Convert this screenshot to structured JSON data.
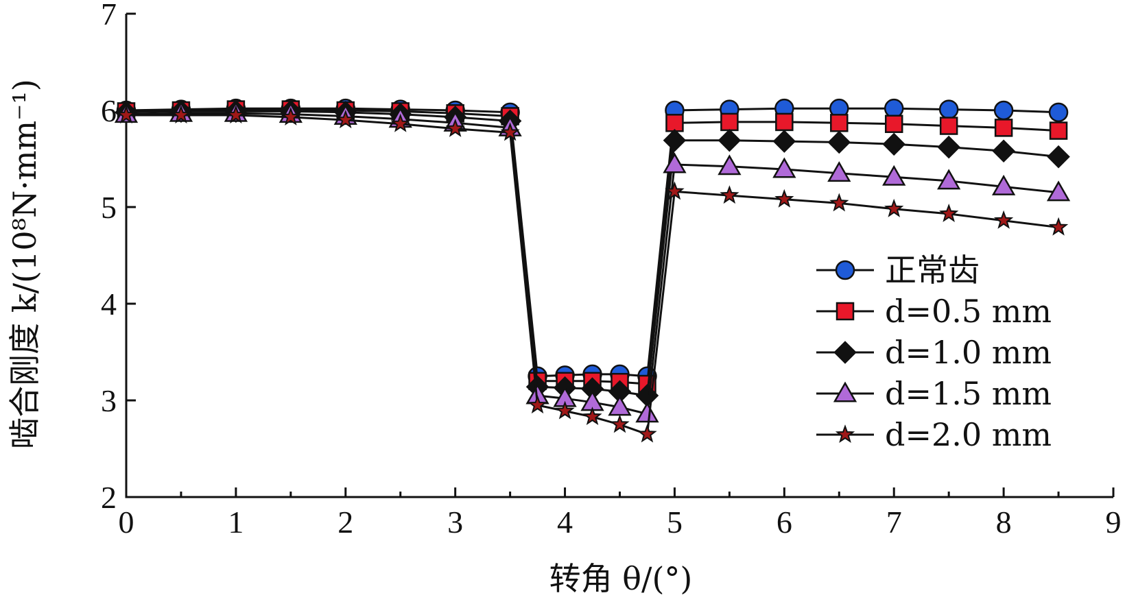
{
  "chart_data": {
    "type": "line",
    "title": "",
    "xlabel": "转角 θ/(°)",
    "ylabel": "啮合刚度 k/(10⁸N·mm⁻¹)",
    "xlim": [
      0,
      9
    ],
    "ylim": [
      2,
      7
    ],
    "xticks": [
      "0",
      "1",
      "2",
      "3",
      "4",
      "5",
      "6",
      "7",
      "8",
      "9"
    ],
    "yticks": [
      "2",
      "3",
      "4",
      "5",
      "6",
      "7"
    ],
    "legend_position": "right",
    "x": [
      0,
      0.5,
      1,
      1.5,
      2,
      2.5,
      3,
      3.5,
      3.75,
      4,
      4.25,
      4.5,
      4.75,
      5,
      5.5,
      6,
      6.5,
      7,
      7.5,
      8,
      8.5
    ],
    "series": [
      {
        "name": "正常齿",
        "marker": "circle",
        "color": "#1f5bd8",
        "values": [
          6.0,
          6.01,
          6.02,
          6.02,
          6.02,
          6.01,
          6.0,
          5.98,
          3.25,
          3.26,
          3.27,
          3.27,
          3.25,
          6.0,
          6.01,
          6.02,
          6.02,
          6.02,
          6.01,
          6.0,
          5.98
        ]
      },
      {
        "name": "d=0.5 mm",
        "marker": "square",
        "color": "#e8182a",
        "values": [
          5.99,
          6.0,
          6.01,
          6.01,
          6.0,
          5.99,
          5.97,
          5.94,
          3.2,
          3.2,
          3.2,
          3.19,
          3.17,
          5.87,
          5.88,
          5.88,
          5.87,
          5.86,
          5.84,
          5.82,
          5.79
        ]
      },
      {
        "name": "d=1.0 mm",
        "marker": "diamond",
        "color": "#111111",
        "values": [
          5.98,
          5.99,
          5.99,
          5.99,
          5.98,
          5.96,
          5.93,
          5.89,
          3.14,
          3.13,
          3.12,
          3.09,
          3.05,
          5.69,
          5.69,
          5.68,
          5.67,
          5.65,
          5.62,
          5.58,
          5.52
        ]
      },
      {
        "name": "d=1.5 mm",
        "marker": "triangle",
        "color": "#b06ad8",
        "values": [
          5.96,
          5.97,
          5.97,
          5.96,
          5.94,
          5.91,
          5.87,
          5.82,
          3.05,
          3.02,
          2.98,
          2.93,
          2.86,
          5.44,
          5.42,
          5.39,
          5.35,
          5.31,
          5.27,
          5.21,
          5.15
        ]
      },
      {
        "name": "d=2.0 mm",
        "marker": "star",
        "color": "#a01818",
        "values": [
          5.95,
          5.95,
          5.95,
          5.93,
          5.9,
          5.86,
          5.81,
          5.77,
          2.95,
          2.89,
          2.83,
          2.75,
          2.65,
          5.16,
          5.12,
          5.08,
          5.04,
          4.98,
          4.93,
          4.86,
          4.79
        ]
      }
    ]
  }
}
